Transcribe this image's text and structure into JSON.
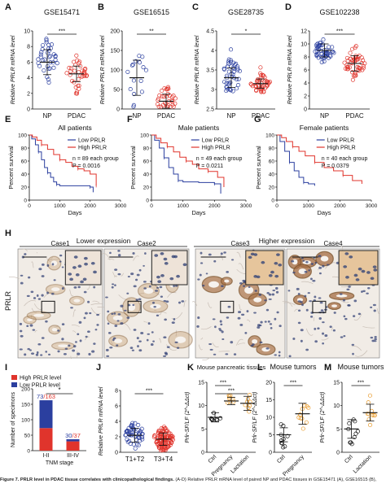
{
  "caption": {
    "lead": "Figure 7. PRLR level in PDAC tissue correlates with clinicopathological findings.",
    "rest": " (A-D) Relative PRLR mRNA level of paired NP and PDAC tissues in GSE15471 (A), GSE16515 (B),"
  },
  "colors": {
    "blue": "#2b3f9f",
    "red": "#e0342c",
    "orange": "#e89a2a",
    "black": "#111111"
  },
  "chart_data": [
    {
      "panel": "A",
      "type": "scatter",
      "title": "GSE15471",
      "ylabel": "Relative PRLR mRNA level",
      "categories": [
        "NP",
        "PDAC"
      ],
      "ylim": [
        0,
        10
      ],
      "yticks": [
        0,
        2,
        4,
        6,
        8,
        10
      ],
      "mean": [
        6.0,
        4.5
      ],
      "sd": [
        1.6,
        1.0
      ],
      "n": [
        36,
        36
      ],
      "sig": "***"
    },
    {
      "panel": "B",
      "type": "scatter",
      "title": "GSE16515",
      "ylabel": "Relative PRLR mRNA level",
      "categories": [
        "NP",
        "PDAC"
      ],
      "ylim": [
        0,
        200
      ],
      "yticks": [
        0,
        50,
        100,
        150,
        200
      ],
      "mean": [
        80,
        20
      ],
      "sd": [
        45,
        18
      ],
      "n": [
        16,
        34
      ],
      "sig": "**"
    },
    {
      "panel": "C",
      "type": "scatter",
      "title": "GSE28735",
      "ylabel": "Relative PRLR mRNA level",
      "categories": [
        "NP",
        "PDAC"
      ],
      "ylim": [
        2.5,
        4.5
      ],
      "yticks": [
        2.5,
        3.0,
        3.5,
        4.0,
        4.5
      ],
      "mean": [
        3.3,
        3.15
      ],
      "sd": [
        0.25,
        0.12
      ],
      "n": [
        45,
        45
      ],
      "sig": "*"
    },
    {
      "panel": "D",
      "type": "scatter",
      "title": "GSE102238",
      "ylabel": "Relative PRLR mRNA level",
      "categories": [
        "NP",
        "PDAC"
      ],
      "ylim": [
        0,
        12
      ],
      "yticks": [
        0,
        2,
        4,
        6,
        8,
        10,
        12
      ],
      "mean": [
        9.0,
        7.0
      ],
      "sd": [
        1.0,
        1.2
      ],
      "n": [
        50,
        50
      ],
      "sig": "***"
    },
    {
      "panel": "E",
      "type": "line",
      "title": "All patients",
      "xlabel": "Days",
      "ylabel": "Percent survival",
      "xlim": [
        0,
        3000
      ],
      "ylim": [
        0,
        100
      ],
      "xticks": [
        0,
        1000,
        2000,
        3000
      ],
      "yticks": [
        0,
        20,
        40,
        60,
        80,
        100
      ],
      "annotation": [
        "n = 89 each group",
        "P = 0.0016"
      ],
      "series": [
        {
          "name": "Low PRLR",
          "color": "blue",
          "points": [
            [
              0,
              100
            ],
            [
              80,
              94
            ],
            [
              200,
              85
            ],
            [
              300,
              74
            ],
            [
              400,
              62
            ],
            [
              500,
              50
            ],
            [
              600,
              42
            ],
            [
              700,
              35
            ],
            [
              800,
              28
            ],
            [
              900,
              24
            ],
            [
              1000,
              22
            ],
            [
              1500,
              22
            ],
            [
              2000,
              20
            ],
            [
              2100,
              12
            ]
          ]
        },
        {
          "name": "High PRLR",
          "color": "red",
          "points": [
            [
              0,
              100
            ],
            [
              100,
              97
            ],
            [
              250,
              92
            ],
            [
              400,
              85
            ],
            [
              600,
              78
            ],
            [
              800,
              70
            ],
            [
              1000,
              62
            ],
            [
              1200,
              58
            ],
            [
              1400,
              52
            ],
            [
              1600,
              48
            ],
            [
              1800,
              45
            ],
            [
              2000,
              40
            ],
            [
              2200,
              22
            ]
          ]
        }
      ]
    },
    {
      "panel": "F",
      "type": "line",
      "title": "Male patients",
      "xlabel": "Days",
      "ylabel": "Percent survival",
      "xlim": [
        0,
        3000
      ],
      "ylim": [
        0,
        100
      ],
      "xticks": [
        0,
        1000,
        2000,
        3000
      ],
      "yticks": [
        0,
        20,
        40,
        60,
        80,
        100
      ],
      "annotation": [
        "n = 49 each group",
        "P = 0.0211"
      ],
      "series": [
        {
          "name": "Low PRLR",
          "color": "blue",
          "points": [
            [
              0,
              100
            ],
            [
              100,
              92
            ],
            [
              250,
              80
            ],
            [
              400,
              65
            ],
            [
              550,
              50
            ],
            [
              700,
              40
            ],
            [
              850,
              30
            ],
            [
              1000,
              28
            ],
            [
              1500,
              27
            ],
            [
              2000,
              25
            ],
            [
              2200,
              10
            ]
          ]
        },
        {
          "name": "High PRLR",
          "color": "red",
          "points": [
            [
              0,
              100
            ],
            [
              150,
              95
            ],
            [
              300,
              88
            ],
            [
              500,
              82
            ],
            [
              700,
              74
            ],
            [
              900,
              66
            ],
            [
              1100,
              60
            ],
            [
              1300,
              55
            ],
            [
              1500,
              48
            ],
            [
              1800,
              44
            ],
            [
              2100,
              35
            ],
            [
              2300,
              20
            ]
          ]
        }
      ]
    },
    {
      "panel": "G",
      "type": "line",
      "title": "Female patients",
      "xlabel": "Days",
      "ylabel": "Percent survival",
      "xlim": [
        0,
        3000
      ],
      "ylim": [
        0,
        100
      ],
      "xticks": [
        0,
        1000,
        2000,
        3000
      ],
      "yticks": [
        0,
        20,
        40,
        60,
        80,
        100
      ],
      "annotation": [
        "n = 40 each group",
        "P = 0.0379"
      ],
      "series": [
        {
          "name": "Low PRLR",
          "color": "blue",
          "points": [
            [
              0,
              100
            ],
            [
              100,
              90
            ],
            [
              250,
              75
            ],
            [
              400,
              58
            ],
            [
              550,
              45
            ],
            [
              700,
              35
            ],
            [
              850,
              27
            ],
            [
              1000,
              25
            ],
            [
              1200,
              22
            ]
          ]
        },
        {
          "name": "High PRLR",
          "color": "red",
          "points": [
            [
              0,
              100
            ],
            [
              150,
              96
            ],
            [
              300,
              90
            ],
            [
              500,
              82
            ],
            [
              700,
              75
            ],
            [
              900,
              68
            ],
            [
              1200,
              58
            ],
            [
              1500,
              50
            ],
            [
              1800,
              45
            ],
            [
              2100,
              38
            ],
            [
              2400,
              30
            ],
            [
              2700,
              25
            ]
          ]
        }
      ]
    },
    {
      "panel": "I",
      "type": "bar",
      "ylabel": "Number of specimons",
      "xlabel": "TNM stage",
      "categories": [
        "I-II",
        "III-IV"
      ],
      "ylim": [
        0,
        200
      ],
      "yticks": [
        0,
        50,
        100,
        150,
        200
      ],
      "series": [
        {
          "name": "High PRLR level",
          "color": "red",
          "values": [
            73,
            30
          ]
        },
        {
          "name": "Low PRLR level",
          "color": "blue",
          "values": [
            90,
            7
          ]
        }
      ],
      "labels": [
        {
          "high": "73",
          "total": "/163"
        },
        {
          "high": "30",
          "total": "/37"
        }
      ],
      "sig": "*"
    },
    {
      "panel": "J",
      "type": "scatter",
      "ylabel": "Relative PRLR mRNA level",
      "categories": [
        "T1+T2",
        "T3+T4"
      ],
      "ylim": [
        0,
        8
      ],
      "yticks": [
        0,
        2,
        4,
        6,
        8
      ],
      "mean": [
        2.2,
        1.7
      ],
      "sd": [
        0.9,
        0.8
      ],
      "n": [
        50,
        110
      ],
      "sig": "***"
    },
    {
      "panel": "K",
      "type": "scatter",
      "title": "Mouse pancreatic tissues",
      "ylabel": "Prlr-SF/LF (2^-ΔΔct)",
      "categories": [
        "Ctrl",
        "Pregnancy",
        "Lactation"
      ],
      "ylim": [
        0,
        15
      ],
      "yticks": [
        0,
        5,
        10,
        15
      ],
      "mean": [
        7.5,
        11.0,
        10.5
      ],
      "sd": [
        1.0,
        0.8,
        1.5
      ],
      "n": [
        8,
        8,
        8
      ],
      "sig": [
        "***",
        "***"
      ]
    },
    {
      "panel": "L",
      "type": "scatter",
      "title": "Mouse tumors",
      "ylabel": "Prlr-SF/LF (2^-ΔΔct)",
      "categories": [
        "Ctrl",
        "Pregnancy"
      ],
      "ylim": [
        0,
        20
      ],
      "yticks": [
        0,
        5,
        10,
        15,
        20
      ],
      "mean": [
        5.0,
        11.0
      ],
      "sd": [
        2.0,
        3.0
      ],
      "n": [
        10,
        10
      ],
      "sig": "***"
    },
    {
      "panel": "M",
      "type": "scatter",
      "title": "Mouse tumors",
      "ylabel": "Prlr-SF/LF (2^-ΔΔct)",
      "categories": [
        "Ctrl",
        "Lactation"
      ],
      "ylim": [
        0,
        15
      ],
      "yticks": [
        0,
        5,
        10,
        15
      ],
      "mean": [
        5.0,
        8.5
      ],
      "sd": [
        2.0,
        1.8
      ],
      "n": [
        10,
        10
      ],
      "sig": "***"
    }
  ],
  "histology": {
    "ylabel": "PRLR",
    "group_labels": [
      "Lower expression",
      "Higher expression"
    ],
    "cases": [
      "Case1",
      "Case2",
      "Case3",
      "Case4"
    ],
    "stain_level": [
      0.15,
      0.2,
      0.75,
      0.85
    ]
  },
  "panel_letters": [
    "A",
    "B",
    "C",
    "D",
    "E",
    "F",
    "G",
    "H",
    "I",
    "J",
    "K",
    "L",
    "M"
  ]
}
